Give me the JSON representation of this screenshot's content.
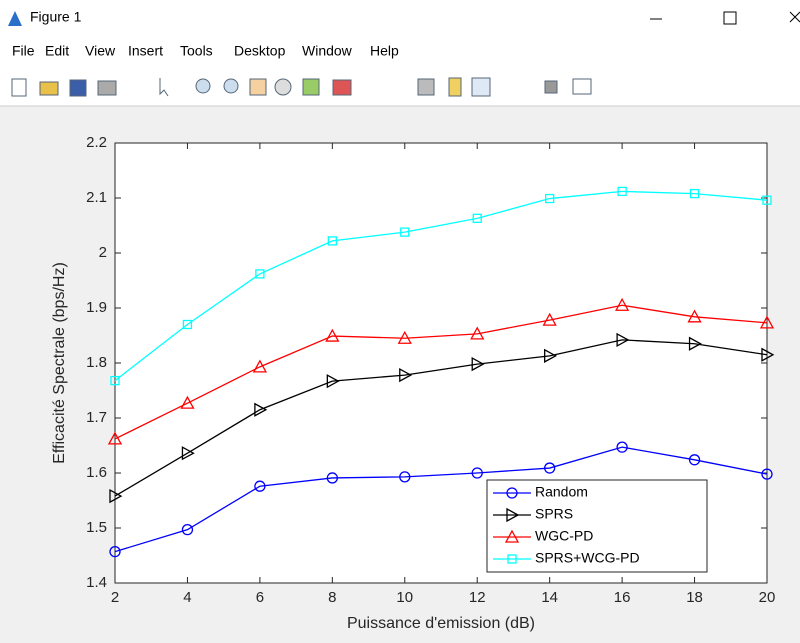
{
  "window": {
    "title": "Figure 1",
    "menu": [
      "File",
      "Edit",
      "View",
      "Insert",
      "Tools",
      "Desktop",
      "Window",
      "Help"
    ]
  },
  "chart_data": {
    "type": "line",
    "xlabel": "Puissance d'emission (dB)",
    "ylabel": "Efficacité Spectrale (bps/Hz)",
    "x": [
      2,
      4,
      6,
      8,
      10,
      12,
      14,
      16,
      18,
      20
    ],
    "series": [
      {
        "name": "Random",
        "color": "#0000ff",
        "marker": "circle",
        "values": [
          1.457,
          1.497,
          1.576,
          1.591,
          1.593,
          1.6,
          1.609,
          1.647,
          1.624,
          1.598
        ]
      },
      {
        "name": "SPRS",
        "color": "#000000",
        "marker": "triangle-right",
        "values": [
          1.558,
          1.636,
          1.715,
          1.767,
          1.778,
          1.798,
          1.813,
          1.842,
          1.835,
          1.815
        ]
      },
      {
        "name": "WGC-PD",
        "color": "#ff0000",
        "marker": "triangle-up",
        "values": [
          1.662,
          1.727,
          1.793,
          1.849,
          1.845,
          1.853,
          1.878,
          1.905,
          1.884,
          1.873
        ]
      },
      {
        "name": "SPRS+WCG-PD",
        "color": "#00ffff",
        "marker": "square",
        "values": [
          1.768,
          1.87,
          1.962,
          2.022,
          2.038,
          2.063,
          2.099,
          2.112,
          2.108,
          2.096
        ]
      }
    ],
    "xlim": [
      2,
      20
    ],
    "xticks": [
      2,
      4,
      6,
      8,
      10,
      12,
      14,
      16,
      18,
      20
    ],
    "ylim": [
      1.4,
      2.2
    ],
    "yticks": [
      1.4,
      1.5,
      1.6,
      1.7,
      1.8,
      1.9,
      2,
      2.1,
      2.2
    ],
    "legend": "southeast"
  }
}
